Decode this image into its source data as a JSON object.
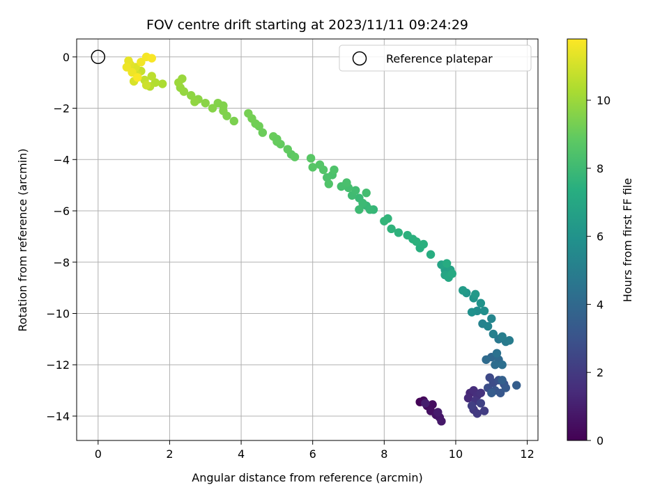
{
  "chart_data": {
    "type": "scatter",
    "title": "FOV centre drift starting at 2023/11/11 09:24:29",
    "xlabel": "Angular distance from reference (arcmin)",
    "ylabel": "Rotation from reference (arcmin)",
    "xlim": [
      -0.6,
      12.3
    ],
    "ylim": [
      -14.95,
      0.7
    ],
    "x_ticks": [
      0,
      2,
      4,
      6,
      8,
      10,
      12
    ],
    "y_ticks": [
      0,
      -2,
      -4,
      -6,
      -8,
      -10,
      -12,
      -14
    ],
    "grid": true,
    "legend": {
      "position": "top-right",
      "entries": [
        "Reference platepar"
      ]
    },
    "reference_point": {
      "name": "Reference platepar",
      "x": 0,
      "y": 0
    },
    "colorbar": {
      "label": "Hours from first FF file",
      "range": [
        0,
        11.8
      ],
      "ticks": [
        0,
        2,
        4,
        6,
        8,
        10
      ],
      "colormap": "viridis"
    },
    "points": [
      {
        "x": 9.0,
        "y": -13.45,
        "t": 0.1
      },
      {
        "x": 9.1,
        "y": -13.4,
        "t": 0.2
      },
      {
        "x": 9.2,
        "y": -13.6,
        "t": 0.3
      },
      {
        "x": 9.35,
        "y": -13.55,
        "t": 0.4
      },
      {
        "x": 9.3,
        "y": -13.8,
        "t": 0.5
      },
      {
        "x": 9.45,
        "y": -13.95,
        "t": 0.6
      },
      {
        "x": 9.55,
        "y": -14.05,
        "t": 0.7
      },
      {
        "x": 9.6,
        "y": -14.2,
        "t": 0.8
      },
      {
        "x": 9.5,
        "y": -13.85,
        "t": 0.9
      },
      {
        "x": 9.15,
        "y": -13.5,
        "t": 1.0
      },
      {
        "x": 10.4,
        "y": -13.1,
        "t": 1.3
      },
      {
        "x": 10.35,
        "y": -13.3,
        "t": 1.4
      },
      {
        "x": 10.5,
        "y": -13.0,
        "t": 1.5
      },
      {
        "x": 10.6,
        "y": -13.2,
        "t": 1.6
      },
      {
        "x": 10.7,
        "y": -13.1,
        "t": 1.7
      },
      {
        "x": 10.55,
        "y": -13.4,
        "t": 1.8
      },
      {
        "x": 10.5,
        "y": -13.75,
        "t": 1.9
      },
      {
        "x": 10.6,
        "y": -13.9,
        "t": 2.0
      },
      {
        "x": 10.8,
        "y": -13.8,
        "t": 2.1
      },
      {
        "x": 10.45,
        "y": -13.6,
        "t": 2.2
      },
      {
        "x": 10.7,
        "y": -13.5,
        "t": 2.3
      },
      {
        "x": 10.95,
        "y": -12.5,
        "t": 2.6
      },
      {
        "x": 11.05,
        "y": -12.7,
        "t": 2.7
      },
      {
        "x": 10.9,
        "y": -12.9,
        "t": 2.8
      },
      {
        "x": 11.2,
        "y": -12.6,
        "t": 2.9
      },
      {
        "x": 11.35,
        "y": -12.75,
        "t": 3.0
      },
      {
        "x": 11.1,
        "y": -13.0,
        "t": 3.1
      },
      {
        "x": 11.25,
        "y": -13.1,
        "t": 3.2
      },
      {
        "x": 11.4,
        "y": -12.9,
        "t": 3.3
      },
      {
        "x": 11.0,
        "y": -13.1,
        "t": 3.4
      },
      {
        "x": 11.7,
        "y": -12.8,
        "t": 3.5
      },
      {
        "x": 11.3,
        "y": -12.6,
        "t": 3.6
      },
      {
        "x": 11.0,
        "y": -11.7,
        "t": 3.9
      },
      {
        "x": 11.2,
        "y": -11.8,
        "t": 4.0
      },
      {
        "x": 10.85,
        "y": -11.8,
        "t": 4.1
      },
      {
        "x": 11.1,
        "y": -12.0,
        "t": 4.2
      },
      {
        "x": 11.3,
        "y": -12.0,
        "t": 4.3
      },
      {
        "x": 11.15,
        "y": -11.55,
        "t": 4.4
      },
      {
        "x": 11.2,
        "y": -11.0,
        "t": 4.7
      },
      {
        "x": 11.4,
        "y": -11.1,
        "t": 4.8
      },
      {
        "x": 11.5,
        "y": -11.05,
        "t": 4.9
      },
      {
        "x": 11.3,
        "y": -10.9,
        "t": 5.0
      },
      {
        "x": 11.05,
        "y": -10.8,
        "t": 5.1
      },
      {
        "x": 10.75,
        "y": -10.4,
        "t": 5.2
      },
      {
        "x": 10.9,
        "y": -10.5,
        "t": 5.3
      },
      {
        "x": 11.0,
        "y": -10.2,
        "t": 5.4
      },
      {
        "x": 10.6,
        "y": -9.9,
        "t": 5.7
      },
      {
        "x": 10.8,
        "y": -9.9,
        "t": 5.8
      },
      {
        "x": 10.45,
        "y": -9.95,
        "t": 5.9
      },
      {
        "x": 10.7,
        "y": -9.6,
        "t": 6.0
      },
      {
        "x": 10.5,
        "y": -9.4,
        "t": 6.1
      },
      {
        "x": 10.3,
        "y": -9.2,
        "t": 6.2
      },
      {
        "x": 10.55,
        "y": -9.25,
        "t": 6.3
      },
      {
        "x": 10.2,
        "y": -9.1,
        "t": 6.4
      },
      {
        "x": 9.7,
        "y": -8.3,
        "t": 6.6
      },
      {
        "x": 9.85,
        "y": -8.3,
        "t": 6.7
      },
      {
        "x": 9.6,
        "y": -8.1,
        "t": 6.8
      },
      {
        "x": 9.7,
        "y": -8.5,
        "t": 6.9
      },
      {
        "x": 9.8,
        "y": -8.6,
        "t": 7.0
      },
      {
        "x": 9.9,
        "y": -8.45,
        "t": 7.1
      },
      {
        "x": 9.75,
        "y": -8.05,
        "t": 7.2
      },
      {
        "x": 9.3,
        "y": -7.7,
        "t": 7.3
      },
      {
        "x": 9.0,
        "y": -7.45,
        "t": 7.4
      },
      {
        "x": 8.8,
        "y": -7.1,
        "t": 7.45
      },
      {
        "x": 8.65,
        "y": -6.95,
        "t": 7.5
      },
      {
        "x": 8.4,
        "y": -6.85,
        "t": 7.55
      },
      {
        "x": 8.2,
        "y": -6.7,
        "t": 7.6
      },
      {
        "x": 8.1,
        "y": -6.3,
        "t": 7.65
      },
      {
        "x": 8.0,
        "y": -6.4,
        "t": 7.7
      },
      {
        "x": 9.1,
        "y": -7.3,
        "t": 7.45
      },
      {
        "x": 8.9,
        "y": -7.2,
        "t": 7.5
      },
      {
        "x": 7.7,
        "y": -5.95,
        "t": 7.75
      },
      {
        "x": 7.5,
        "y": -5.8,
        "t": 7.8
      },
      {
        "x": 7.6,
        "y": -5.95,
        "t": 7.85
      },
      {
        "x": 7.3,
        "y": -5.5,
        "t": 7.9
      },
      {
        "x": 7.4,
        "y": -5.7,
        "t": 7.95
      },
      {
        "x": 7.3,
        "y": -5.95,
        "t": 8.0
      },
      {
        "x": 7.1,
        "y": -5.4,
        "t": 8.05
      },
      {
        "x": 7.2,
        "y": -5.2,
        "t": 8.1
      },
      {
        "x": 7.5,
        "y": -5.3,
        "t": 8.15
      },
      {
        "x": 7.0,
        "y": -5.1,
        "t": 8.2
      },
      {
        "x": 6.8,
        "y": -5.05,
        "t": 8.25
      },
      {
        "x": 6.95,
        "y": -4.9,
        "t": 8.3
      },
      {
        "x": 6.55,
        "y": -4.6,
        "t": 8.35
      },
      {
        "x": 6.4,
        "y": -4.7,
        "t": 8.4
      },
      {
        "x": 6.6,
        "y": -4.4,
        "t": 8.45
      },
      {
        "x": 6.45,
        "y": -4.95,
        "t": 8.5
      },
      {
        "x": 6.3,
        "y": -4.4,
        "t": 8.55
      },
      {
        "x": 6.2,
        "y": -4.2,
        "t": 8.6
      },
      {
        "x": 6.0,
        "y": -4.3,
        "t": 8.65
      },
      {
        "x": 5.95,
        "y": -3.95,
        "t": 8.7
      },
      {
        "x": 5.4,
        "y": -3.8,
        "t": 8.8
      },
      {
        "x": 5.5,
        "y": -3.9,
        "t": 8.85
      },
      {
        "x": 5.3,
        "y": -3.6,
        "t": 8.9
      },
      {
        "x": 5.1,
        "y": -3.4,
        "t": 8.95
      },
      {
        "x": 5.0,
        "y": -3.3,
        "t": 9.0
      },
      {
        "x": 4.9,
        "y": -3.1,
        "t": 9.05
      },
      {
        "x": 4.6,
        "y": -2.95,
        "t": 9.1
      },
      {
        "x": 4.5,
        "y": -2.7,
        "t": 9.15
      },
      {
        "x": 4.4,
        "y": -2.6,
        "t": 9.2
      },
      {
        "x": 4.3,
        "y": -2.4,
        "t": 9.25
      },
      {
        "x": 4.2,
        "y": -2.2,
        "t": 9.3
      },
      {
        "x": 5.0,
        "y": -3.2,
        "t": 9.0
      },
      {
        "x": 3.8,
        "y": -2.5,
        "t": 9.4
      },
      {
        "x": 3.6,
        "y": -2.3,
        "t": 9.45
      },
      {
        "x": 3.5,
        "y": -2.1,
        "t": 9.5
      },
      {
        "x": 3.35,
        "y": -1.8,
        "t": 9.55
      },
      {
        "x": 3.2,
        "y": -2.0,
        "t": 9.6
      },
      {
        "x": 3.0,
        "y": -1.8,
        "t": 9.65
      },
      {
        "x": 2.8,
        "y": -1.65,
        "t": 9.7
      },
      {
        "x": 2.6,
        "y": -1.5,
        "t": 9.75
      },
      {
        "x": 2.7,
        "y": -1.75,
        "t": 9.8
      },
      {
        "x": 2.4,
        "y": -1.35,
        "t": 9.85
      },
      {
        "x": 2.3,
        "y": -1.2,
        "t": 9.9
      },
      {
        "x": 2.35,
        "y": -0.85,
        "t": 9.95
      },
      {
        "x": 2.25,
        "y": -1.0,
        "t": 10.0
      },
      {
        "x": 3.5,
        "y": -1.9,
        "t": 9.5
      },
      {
        "x": 1.8,
        "y": -1.05,
        "t": 10.3
      },
      {
        "x": 1.6,
        "y": -1.0,
        "t": 10.4
      },
      {
        "x": 1.45,
        "y": -1.15,
        "t": 10.5
      },
      {
        "x": 1.5,
        "y": -0.75,
        "t": 10.6
      },
      {
        "x": 1.3,
        "y": -0.9,
        "t": 10.7
      },
      {
        "x": 1.2,
        "y": -0.55,
        "t": 10.8
      },
      {
        "x": 1.35,
        "y": -1.1,
        "t": 10.9
      },
      {
        "x": 1.1,
        "y": -0.7,
        "t": 11.0
      },
      {
        "x": 1.0,
        "y": -0.95,
        "t": 11.1
      },
      {
        "x": 1.05,
        "y": -0.4,
        "t": 11.2
      },
      {
        "x": 0.9,
        "y": -0.3,
        "t": 11.3
      },
      {
        "x": 0.85,
        "y": -0.15,
        "t": 11.4
      },
      {
        "x": 0.8,
        "y": -0.4,
        "t": 11.5
      },
      {
        "x": 0.95,
        "y": -0.6,
        "t": 11.55
      },
      {
        "x": 1.2,
        "y": -0.2,
        "t": 11.6
      },
      {
        "x": 1.35,
        "y": 0.0,
        "t": 11.65
      },
      {
        "x": 1.5,
        "y": -0.05,
        "t": 11.7
      },
      {
        "x": 1.1,
        "y": -0.8,
        "t": 11.75
      }
    ]
  }
}
